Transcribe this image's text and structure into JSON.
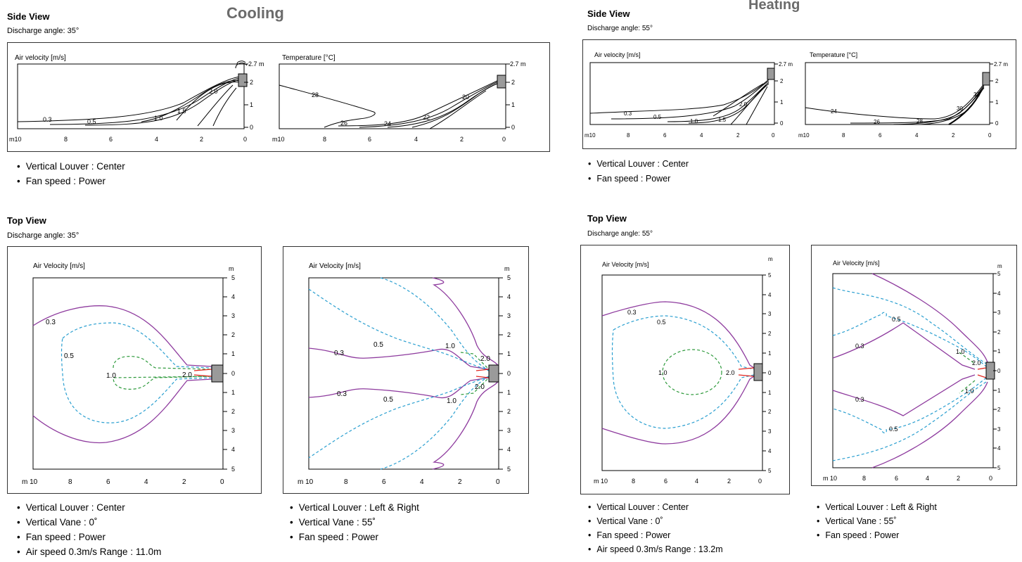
{
  "cooling": {
    "title": "Cooling",
    "side": {
      "heading": "Side View",
      "angle": "Discharge angle: 35°",
      "velocity_title": "Air velocity [m/s]",
      "temp_title": "Temperature [°C]",
      "velocity_labels": [
        "0.3",
        "0.5",
        "1.0",
        "1.5",
        "2.0"
      ],
      "temp_labels": [
        "28",
        "26",
        "24",
        "22",
        "20"
      ],
      "notes": [
        "Vertical Louver : Center",
        "Fan speed : Power"
      ]
    },
    "top": {
      "heading": "Top View",
      "angle": "Discharge angle: 35°",
      "panel1": {
        "title": "Air Velocity [m/s]",
        "labels": [
          "0.3",
          "0.5",
          "1.0",
          "2.0"
        ],
        "notes": [
          "Vertical Louver : Center",
          "Vertical Vane : 0˚",
          "Fan speed : Power",
          "Air speed 0.3m/s Range : 11.0m"
        ]
      },
      "panel2": {
        "title": "Air Velocity [m/s]",
        "labels": [
          "0.5",
          "1.0",
          "2.0",
          "0.3",
          "0.3",
          "0.5",
          "2.0",
          "1.0"
        ],
        "notes": [
          "Vertical Louver : Left & Right",
          "Vertical Vane : 55˚",
          "Fan speed : Power"
        ]
      }
    }
  },
  "heating": {
    "title": "Heating",
    "side": {
      "heading": "Side View",
      "angle": "Discharge angle: 55°",
      "velocity_title": "Air velocity [m/s]",
      "temp_title": "Temperature [°C]",
      "velocity_labels": [
        "0.3",
        "0.5",
        "1.0",
        "1.5",
        "2.0"
      ],
      "temp_labels": [
        "24",
        "26",
        "28",
        "30",
        "32"
      ],
      "notes": [
        "Vertical Louver : Center",
        "Fan speed : Power"
      ]
    },
    "top": {
      "heading": "Top View",
      "angle": "Discharge angle: 55°",
      "panel1": {
        "title": "Air Velocity [m/s]",
        "labels": [
          "0.3",
          "0.5",
          "1.0",
          "2.0"
        ],
        "notes": [
          "Vertical Louver : Center",
          "Vertical Vane : 0˚",
          "Fan speed : Power",
          "Air speed 0.3m/s Range : 13.2m"
        ]
      },
      "panel2": {
        "title": "Air Velocity [m/s]",
        "labels": [
          "0.5",
          "0.3",
          "1.0",
          "2.0",
          "1.0",
          "0.3",
          "0.5"
        ],
        "notes": [
          "Vertical Louver : Left & Right",
          "Vertical Vane : 55˚",
          "Fan speed : Power"
        ]
      }
    }
  },
  "axes": {
    "side_x_ticks": [
      "m10",
      "8",
      "6",
      "4",
      "2",
      "0"
    ],
    "side_y_ticks": [
      "2.7 m",
      "2",
      "1",
      "0"
    ],
    "top_x_ticks": [
      "m 10",
      "8",
      "6",
      "4",
      "2",
      "0"
    ],
    "top_y_unit": "m",
    "top_y_ticks": [
      "5",
      "4",
      "3",
      "2",
      "1",
      "0",
      "1",
      "2",
      "3",
      "4",
      "5"
    ]
  },
  "colors": {
    "v03": "#8e3b9e",
    "v05": "#2a9fd0",
    "v10": "#2e9a3c",
    "v20": "#e2261f",
    "unit": "#999999"
  }
}
